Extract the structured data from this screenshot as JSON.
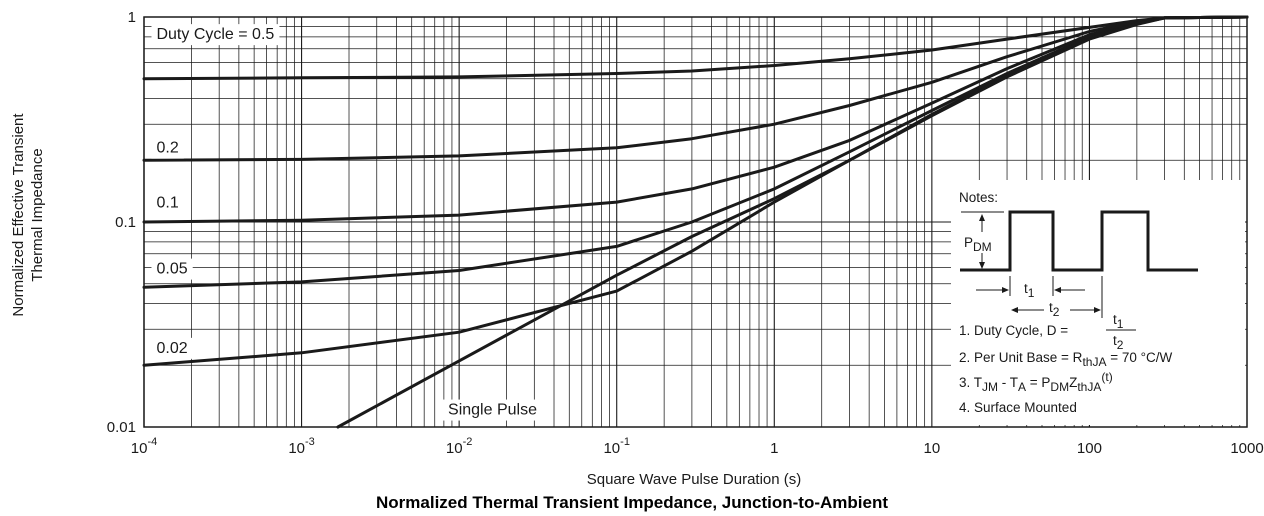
{
  "chart_data": {
    "type": "line",
    "title": "Normalized Thermal Transient Impedance, Junction-to-Ambient",
    "xlabel": "Square Wave Pulse Duration (s)",
    "ylabel_line1": "Normalized Effective Transient",
    "ylabel_line2": "Thermal Impedance",
    "x_scale": "log",
    "y_scale": "log",
    "xlim": [
      0.0001,
      1000
    ],
    "ylim": [
      0.01,
      1
    ],
    "grid": true,
    "x_ticks": [
      {
        "value": 0.0001,
        "base": "10",
        "exp": "-4"
      },
      {
        "value": 0.001,
        "base": "10",
        "exp": "-3"
      },
      {
        "value": 0.01,
        "base": "10",
        "exp": "-2"
      },
      {
        "value": 0.1,
        "base": "10",
        "exp": "-1"
      },
      {
        "value": 1,
        "base": "1",
        "exp": ""
      },
      {
        "value": 10,
        "base": "10",
        "exp": ""
      },
      {
        "value": 100,
        "base": "100",
        "exp": ""
      },
      {
        "value": 1000,
        "base": "1000",
        "exp": ""
      }
    ],
    "y_ticks": [
      {
        "value": 1,
        "label": "1"
      },
      {
        "value": 0.1,
        "label": "0.1"
      },
      {
        "value": 0.01,
        "label": "0.01"
      }
    ],
    "series": [
      {
        "name": "Duty Cycle = 0.5",
        "label_at": [
          0.00012,
          0.78
        ],
        "x": [
          0.0001,
          0.001,
          0.01,
          0.1,
          0.3,
          1,
          3,
          10,
          30,
          100,
          200,
          300,
          1000
        ],
        "y": [
          0.5,
          0.505,
          0.51,
          0.53,
          0.545,
          0.58,
          0.625,
          0.69,
          0.78,
          0.89,
          0.96,
          0.99,
          1.0
        ]
      },
      {
        "name": "0.2",
        "label_at": [
          0.00012,
          0.218
        ],
        "x": [
          0.0001,
          0.001,
          0.01,
          0.1,
          0.3,
          1,
          3,
          10,
          30,
          100,
          200,
          300,
          1000
        ],
        "y": [
          0.2,
          0.202,
          0.21,
          0.23,
          0.255,
          0.3,
          0.37,
          0.48,
          0.64,
          0.85,
          0.95,
          0.99,
          1.0
        ]
      },
      {
        "name": "0.1",
        "label_at": [
          0.00012,
          0.118
        ],
        "x": [
          0.0001,
          0.001,
          0.01,
          0.1,
          0.3,
          1,
          3,
          10,
          30,
          100,
          200,
          300,
          1000
        ],
        "y": [
          0.1,
          0.102,
          0.108,
          0.125,
          0.145,
          0.185,
          0.25,
          0.38,
          0.56,
          0.82,
          0.94,
          0.99,
          1.0
        ]
      },
      {
        "name": "0.05",
        "label_at": [
          0.00012,
          0.056
        ],
        "x": [
          0.0001,
          0.001,
          0.01,
          0.1,
          0.3,
          1,
          3,
          10,
          30,
          100,
          200,
          300,
          1000
        ],
        "y": [
          0.048,
          0.051,
          0.058,
          0.076,
          0.1,
          0.145,
          0.22,
          0.35,
          0.53,
          0.8,
          0.93,
          0.99,
          1.0
        ]
      },
      {
        "name": "0.02",
        "label_at": [
          0.00012,
          0.023
        ],
        "x": [
          0.0001,
          0.001,
          0.01,
          0.1,
          0.3,
          1,
          3,
          10,
          30,
          100,
          200,
          300,
          1000
        ],
        "y": [
          0.02,
          0.023,
          0.029,
          0.046,
          0.072,
          0.125,
          0.2,
          0.335,
          0.52,
          0.79,
          0.93,
          0.99,
          1.0
        ]
      },
      {
        "name": "Single Pulse",
        "label_at": [
          0.0085,
          0.0115
        ],
        "x": [
          0.0017,
          0.01,
          0.1,
          0.3,
          1,
          3,
          10,
          30,
          100,
          200,
          300,
          1000
        ],
        "y": [
          0.01,
          0.021,
          0.055,
          0.085,
          0.13,
          0.2,
          0.33,
          0.51,
          0.78,
          0.92,
          0.99,
          1.0
        ]
      }
    ]
  },
  "notes": {
    "heading": "Notes:",
    "pdm_main": "P",
    "pdm_sub": "DM",
    "t1_main": "t",
    "t1_sub": "1",
    "t2_main": "t",
    "t2_sub": "2",
    "note1_text": "1. Duty Cycle, D =",
    "note1_num_main": "t",
    "note1_num_sub": "1",
    "note1_den_main": "t",
    "note1_den_sub": "2",
    "note2_pre": "2. Per Unit Base = R",
    "note2_sub": "thJA",
    "note2_post": " = 70 °C/W",
    "note3_a": "3. T",
    "note3_a_sub": "JM",
    "note3_b": " - T",
    "note3_b_sub": "A",
    "note3_c": " = P",
    "note3_c_sub": "DM",
    "note3_d": "Z",
    "note3_d_sub": "thJA",
    "note3_e_sup": "(t)",
    "note4": "4. Surface Mounted"
  }
}
